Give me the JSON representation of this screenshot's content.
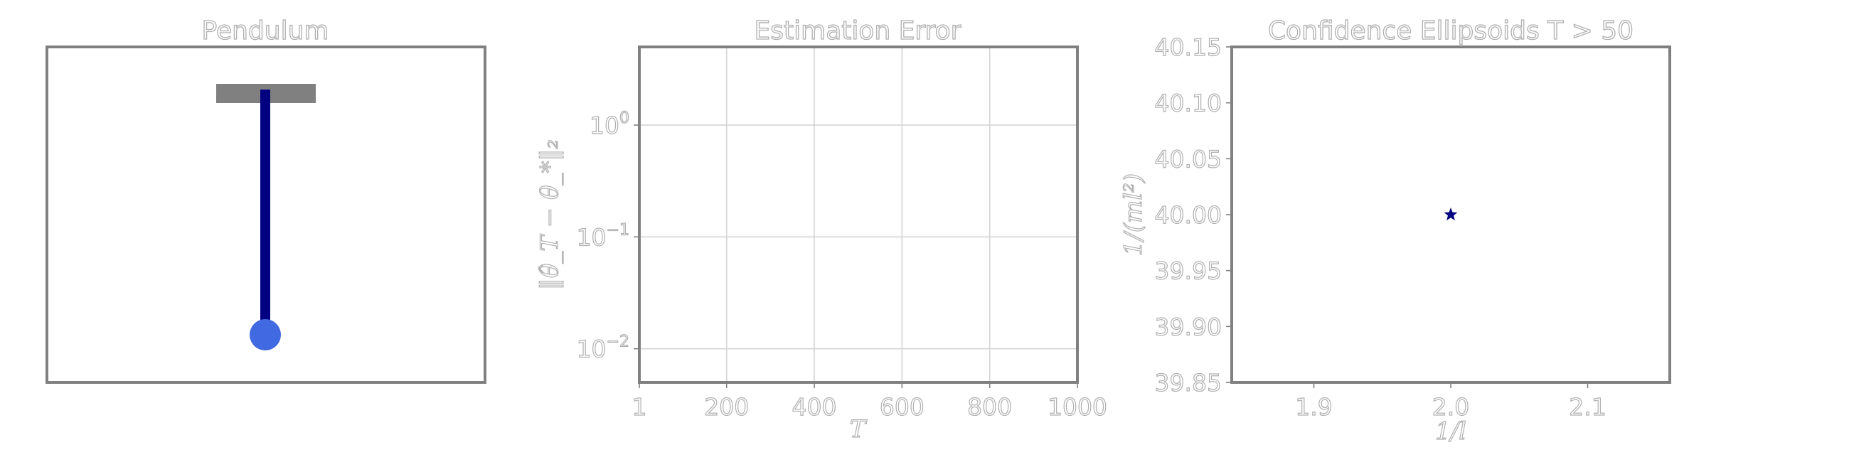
{
  "chart_data": [
    {
      "type": "diagram",
      "title": "Pendulum",
      "colors": {
        "pivot": "#808080",
        "rod": "#000080",
        "bob": "#4169e1"
      }
    },
    {
      "type": "line",
      "title": "Estimation Error",
      "xlabel": "T",
      "ylabel": "‖θ̂_T − θ_*‖₂",
      "xlim": [
        1,
        1000
      ],
      "ylim": [
        0.005,
        5
      ],
      "yscale": "log",
      "xticks": [
        "1",
        "200",
        "400",
        "600",
        "800",
        "1000"
      ],
      "yticks": [
        {
          "base": "10",
          "exp": "0",
          "value": 1
        },
        {
          "base": "10",
          "exp": "−1",
          "value": 0.1
        },
        {
          "base": "10",
          "exp": "−2",
          "value": 0.01
        }
      ],
      "grid": true,
      "series": []
    },
    {
      "type": "scatter",
      "title": "Confidence Ellipsoids T > 50",
      "xlabel": "1/l",
      "ylabel": "1/(ml²)",
      "xlim": [
        1.84,
        2.16
      ],
      "ylim": [
        39.85,
        40.15
      ],
      "xticks": [
        "1.9",
        "2.0",
        "2.1"
      ],
      "yticks": [
        "40.15",
        "40.10",
        "40.05",
        "40.00",
        "39.95",
        "39.90",
        "39.85"
      ],
      "grid": false,
      "points": [
        {
          "x": 2.0,
          "y": 40.0,
          "marker": "star",
          "color": "#000080"
        }
      ]
    }
  ]
}
